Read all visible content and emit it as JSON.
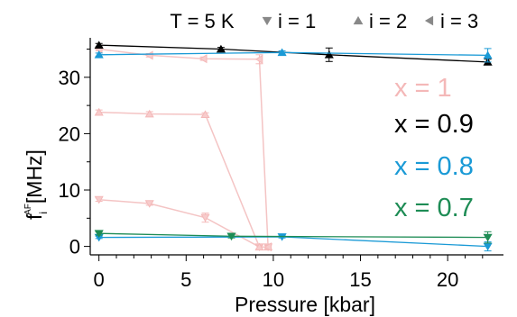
{
  "chart_data": {
    "type": "scatter",
    "title": "T = 5 K",
    "xlabel": "Pressure [kbar]",
    "ylabel": "f",
    "ylabel_sub": "i",
    "ylabel_sup": "AF",
    "ylabel_unit": "[MHz]",
    "xlim": [
      -0.5,
      23.2
    ],
    "ylim": [
      -1.5,
      37
    ],
    "xticks": [
      0,
      5,
      10,
      15,
      20
    ],
    "yticks": [
      0,
      10,
      20,
      30
    ],
    "grid": false,
    "legend": [
      {
        "label": "i = 1",
        "marker": "triangle-down"
      },
      {
        "label": "i = 2",
        "marker": "triangle-up"
      },
      {
        "label": "i = 3",
        "marker": "triangle-left"
      }
    ],
    "annotations": [
      {
        "text": "x = 1",
        "color": "#f4b8b8"
      },
      {
        "text": "x = 0.9",
        "color": "#000000"
      },
      {
        "text": "x = 0.8",
        "color": "#1a9ad6"
      },
      {
        "text": "x = 0.7",
        "color": "#1e8c55"
      }
    ],
    "series": [
      {
        "color": "#f4b8b8",
        "marker": "triangle-down",
        "fill": "light",
        "x": [
          0,
          2.9,
          6.1,
          9.2,
          9.7
        ],
        "y": [
          8.3,
          7.6,
          5.1,
          -0.1,
          -0.1
        ],
        "err": [
          0.3,
          0.3,
          0.8,
          0.3,
          0.3
        ]
      },
      {
        "color": "#f4b8b8",
        "marker": "triangle-up",
        "fill": "light",
        "x": [
          0,
          2.9,
          6.1,
          9.2,
          9.7
        ],
        "y": [
          23.8,
          23.5,
          23.4,
          -0.1,
          -0.1
        ],
        "err": [
          0.4,
          0.4,
          0.3,
          0.3,
          0.3
        ]
      },
      {
        "color": "#f4b8b8",
        "marker": "triangle-left",
        "fill": "light",
        "x": [
          0,
          2.9,
          6.0,
          9.2,
          9.7
        ],
        "y": [
          35.0,
          33.9,
          33.3,
          33.2,
          -0.1
        ],
        "err": [
          0.3,
          0.3,
          0.3,
          0.8,
          0.3
        ]
      },
      {
        "color": "#000000",
        "marker": "triangle-up",
        "fill": "solid",
        "x": [
          0,
          7.0,
          13.2,
          22.3
        ],
        "y": [
          35.7,
          35.0,
          34.0,
          32.7
        ],
        "err": [
          0.3,
          0.3,
          1.2,
          0.5
        ]
      },
      {
        "color": "#1a9ad6",
        "marker": "triangle-up",
        "fill": "solid",
        "x": [
          0,
          10.5,
          22.3
        ],
        "y": [
          34.0,
          34.4,
          33.9
        ],
        "err": [
          0.3,
          0.3,
          1.2
        ]
      },
      {
        "color": "#1a9ad6",
        "marker": "triangle-down",
        "fill": "solid",
        "x": [
          0,
          10.5,
          22.3
        ],
        "y": [
          1.6,
          1.7,
          0.0
        ],
        "err": [
          0.2,
          0.2,
          0.8
        ]
      },
      {
        "color": "#1e8c55",
        "marker": "triangle-down",
        "fill": "solid",
        "x": [
          0,
          7.6,
          22.3
        ],
        "y": [
          2.3,
          1.8,
          1.6
        ],
        "err": [
          0.3,
          0.3,
          1.0
        ]
      }
    ]
  }
}
